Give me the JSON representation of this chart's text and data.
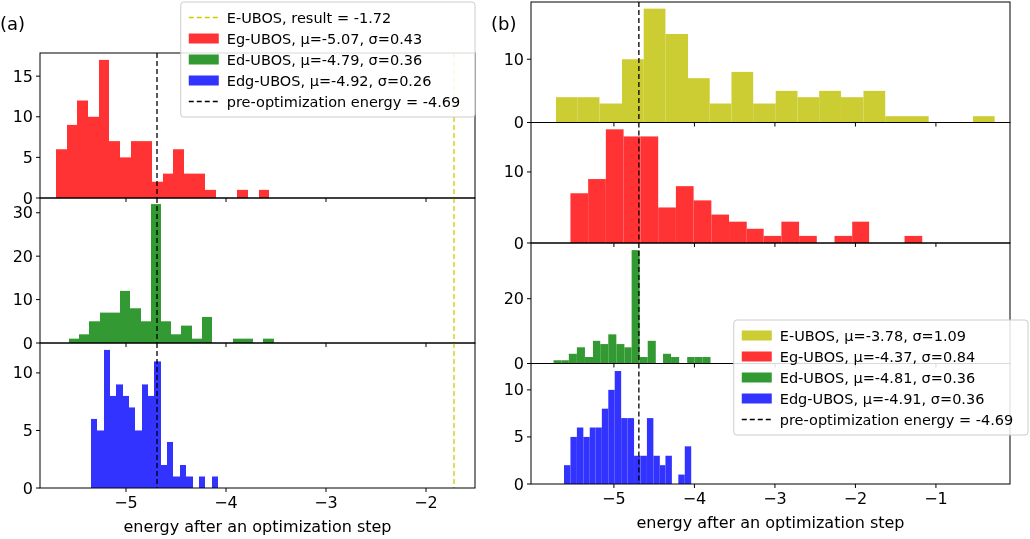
{
  "chart_data": [
    {
      "type": "histogram",
      "title": "(a)",
      "legend": "top right",
      "tick_labels": "y",
      "xlim": [
        -5.86,
        -1.51
      ],
      "xticks": [
        {
          "value": -5,
          "label": null
        },
        {
          "value": -4,
          "label": null
        },
        {
          "value": -3,
          "label": null
        },
        {
          "value": -2,
          "label": null
        }
      ],
      "ylim": [
        0,
        17.85
      ],
      "yticks": [
        0,
        5,
        10,
        15
      ],
      "bins": [
        -5.7,
        -5.59,
        -5.49,
        -5.38,
        -5.27,
        -5.17,
        -5.06,
        -4.95,
        -4.85,
        -4.74,
        -4.63,
        -4.53,
        -4.42,
        -4.31,
        -4.21,
        -4.1,
        -3.89,
        -3.78,
        -3.67,
        -3.57
      ],
      "series": [
        {
          "name": "Eg-UBOS, μ=-5.07, σ=0.43",
          "color": "#ff3333",
          "values": [
            6,
            9,
            12,
            10,
            17,
            7,
            5,
            7,
            7,
            2,
            3,
            6,
            3,
            3,
            1,
            0,
            1,
            0,
            1
          ]
        }
      ],
      "ref_lines": [
        {
          "axis": "x",
          "value": -1.72,
          "label": "E-UBOS, result = -1.72",
          "color": "#cccc00",
          "line_style": "dashed"
        },
        {
          "axis": "x",
          "value": -4.69,
          "color": "#000000",
          "line_style": "dashed"
        }
      ]
    },
    {
      "type": "histogram",
      "legend": "top right",
      "tick_labels": "y",
      "xlim": [
        -5.86,
        -1.51
      ],
      "xticks": [
        {
          "value": -5,
          "label": null
        },
        {
          "value": -4,
          "label": null
        },
        {
          "value": -3,
          "label": null
        },
        {
          "value": -2,
          "label": null
        }
      ],
      "ylim": [
        0,
        33.4
      ],
      "yticks": [
        0,
        10,
        20,
        30
      ],
      "bins": [
        -5.57,
        -5.47,
        -5.37,
        -5.26,
        -5.16,
        -5.06,
        -4.96,
        -4.85,
        -4.75,
        -4.65,
        -4.55,
        -4.45,
        -4.34,
        -4.24,
        -4.14,
        -3.93,
        -3.83,
        -3.73,
        -3.63,
        -3.52
      ],
      "series": [
        {
          "name": "Ed-UBOS, μ=-4.79, σ=0.36",
          "color": "#339933",
          "values": [
            1,
            2,
            5,
            7,
            7,
            12,
            8,
            5,
            32,
            5,
            2,
            4,
            1,
            6,
            0,
            1,
            1,
            0,
            1
          ]
        }
      ],
      "ref_lines": [
        {
          "axis": "x",
          "value": -1.72,
          "color": "#cccc00",
          "line_style": "dashed"
        },
        {
          "axis": "x",
          "value": -4.69,
          "color": "#000000",
          "line_style": "dashed"
        }
      ]
    },
    {
      "type": "histogram",
      "legend": "top right",
      "xlabel": "energy after an optimization step",
      "xlim": [
        -5.86,
        -1.51
      ],
      "xticks": [
        {
          "value": -5,
          "label": "−5"
        },
        {
          "value": -4,
          "label": "−4"
        },
        {
          "value": -3,
          "label": "−3"
        },
        {
          "value": -2,
          "label": "−2"
        }
      ],
      "ylim": [
        0,
        12.6
      ],
      "yticks": [
        0,
        5,
        10
      ],
      "bins": [
        -5.35,
        -5.29,
        -5.22,
        -5.16,
        -5.1,
        -5.03,
        -4.97,
        -4.91,
        -4.84,
        -4.78,
        -4.72,
        -4.65,
        -4.59,
        -4.53,
        -4.46,
        -4.4,
        -4.33,
        -4.27,
        -4.21,
        -4.14,
        -4.08
      ],
      "series": [
        {
          "name": "Edg-UBOS, μ=-4.92, σ=0.26",
          "color": "#3333ff",
          "values": [
            6,
            5,
            12,
            8,
            9,
            8,
            7,
            5,
            9,
            8,
            11,
            2,
            4,
            1,
            2,
            1,
            0,
            1,
            0,
            1
          ]
        }
      ],
      "ref_lines": [
        {
          "axis": "x",
          "value": -1.72,
          "color": "#cccc00",
          "line_style": "dashed"
        },
        {
          "axis": "x",
          "value": -4.69,
          "label": "pre-optimization energy = -4.69",
          "color": "#000000",
          "line_style": "dashed"
        }
      ]
    },
    {
      "type": "histogram",
      "title": "(b)",
      "legend": "bottom right",
      "tick_labels": "y",
      "xlim": [
        -6.03,
        -0.08
      ],
      "xticks": [
        {
          "value": -5,
          "label": null
        },
        {
          "value": -4,
          "label": null
        },
        {
          "value": -3,
          "label": null
        },
        {
          "value": -2,
          "label": null
        },
        {
          "value": -1,
          "label": null
        }
      ],
      "ylim": [
        0,
        19.05
      ],
      "yticks": [
        0,
        10
      ],
      "bins": [
        -5.72,
        -5.45,
        -5.18,
        -4.9,
        -4.63,
        -4.36,
        -4.08,
        -3.81,
        -3.54,
        -3.27,
        -2.99,
        -2.72,
        -2.45,
        -2.18,
        -1.9,
        -1.63,
        -1.36,
        -1.09,
        -0.54,
        -0.27
      ],
      "series": [
        {
          "name": "E-UBOS, μ=-3.78, σ=1.09",
          "color": "#cccc33",
          "values": [
            4,
            4,
            3,
            10,
            18,
            14,
            7,
            3,
            8,
            3,
            5,
            4,
            5,
            4,
            5,
            1,
            1,
            0,
            1
          ]
        }
      ],
      "ref_lines": [
        {
          "axis": "x",
          "value": -4.69,
          "color": "#000000",
          "line_style": "dashed"
        }
      ]
    },
    {
      "type": "histogram",
      "legend": "bottom right",
      "tick_labels": "y",
      "xlim": [
        -6.03,
        -0.08
      ],
      "xticks": [
        {
          "value": -5,
          "label": null
        },
        {
          "value": -4,
          "label": null
        },
        {
          "value": -3,
          "label": null
        },
        {
          "value": -2,
          "label": null
        },
        {
          "value": -1,
          "label": null
        }
      ],
      "ylim": [
        0,
        16.96
      ],
      "yticks": [
        0,
        10
      ],
      "bins": [
        -5.54,
        -5.32,
        -5.1,
        -4.88,
        -4.67,
        -4.45,
        -4.23,
        -4.01,
        -3.79,
        -3.57,
        -3.35,
        -3.14,
        -2.92,
        -2.7,
        -2.48,
        -2.26,
        -2.04,
        -1.83,
        -1.39,
        -1.17
      ],
      "series": [
        {
          "name": "Eg-UBOS, μ=-4.37, σ=0.84",
          "color": "#ff3333",
          "values": [
            7,
            9,
            16,
            15,
            15,
            5,
            8,
            6,
            4,
            3,
            2,
            1,
            3,
            1,
            0,
            1,
            3,
            0,
            1
          ]
        }
      ],
      "ref_lines": [
        {
          "axis": "x",
          "value": -4.69,
          "color": "#000000",
          "line_style": "dashed"
        }
      ]
    },
    {
      "type": "histogram",
      "legend": "bottom right",
      "tick_labels": "y",
      "xlim": [
        -6.03,
        -0.08
      ],
      "xticks": [
        {
          "value": -5,
          "label": null
        },
        {
          "value": -4,
          "label": null
        },
        {
          "value": -3,
          "label": null
        },
        {
          "value": -2,
          "label": null
        },
        {
          "value": -1,
          "label": null
        }
      ],
      "ylim": [
        0,
        37.2
      ],
      "yticks": [
        0,
        20
      ],
      "bins": [
        -5.75,
        -5.65,
        -5.56,
        -5.46,
        -5.36,
        -5.26,
        -5.17,
        -5.07,
        -4.97,
        -4.87,
        -4.78,
        -4.68,
        -4.58,
        -4.48,
        -4.39,
        -4.29,
        -4.19,
        -4.09,
        -4.0,
        -3.9,
        -3.8
      ],
      "series": [
        {
          "name": "Ed-UBOS, μ=-4.81, σ=0.36",
          "color": "#339933",
          "values": [
            1,
            1,
            3,
            5,
            2,
            7,
            6,
            9,
            6,
            5,
            35,
            2,
            7,
            0,
            3,
            2,
            0,
            2,
            2,
            2
          ]
        }
      ],
      "ref_lines": [
        {
          "axis": "x",
          "value": -4.69,
          "color": "#000000",
          "line_style": "dashed"
        }
      ]
    },
    {
      "type": "histogram",
      "legend": "top right",
      "xlabel": "energy after an optimization step",
      "xlim": [
        -6.03,
        -0.08
      ],
      "xticks": [
        {
          "value": -5,
          "label": "−5"
        },
        {
          "value": -4,
          "label": "−4"
        },
        {
          "value": -3,
          "label": "−3"
        },
        {
          "value": -2,
          "label": "−2"
        },
        {
          "value": -1,
          "label": "−1"
        }
      ],
      "ylim": [
        0,
        12.8
      ],
      "yticks": [
        0,
        5,
        10
      ],
      "bins": [
        -5.62,
        -5.54,
        -5.46,
        -5.38,
        -5.3,
        -5.23,
        -5.15,
        -5.07,
        -4.99,
        -4.91,
        -4.83,
        -4.75,
        -4.67,
        -4.59,
        -4.51,
        -4.43,
        -4.36,
        -4.28,
        -4.2,
        -4.12,
        -4.04
      ],
      "series": [
        {
          "name": "Edg-UBOS, μ=-4.91, σ=0.36",
          "color": "#3333ff",
          "values": [
            2,
            5,
            6,
            5,
            6,
            6,
            8,
            10,
            12,
            7,
            7,
            3,
            3,
            7,
            3,
            2,
            3,
            0,
            1,
            4
          ]
        }
      ],
      "ref_lines": [
        {
          "axis": "x",
          "value": -4.69,
          "label": "pre-optimization energy = -4.69",
          "color": "#000000",
          "line_style": "dashed"
        }
      ]
    }
  ]
}
